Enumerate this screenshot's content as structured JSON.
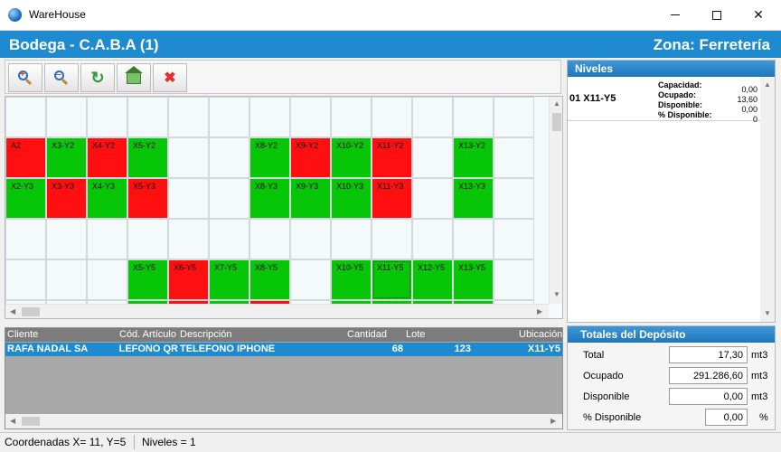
{
  "window": {
    "title": "WareHouse"
  },
  "header": {
    "bodega": "Bodega  - C.A.B.A (1)",
    "zona": "Zona: Ferretería"
  },
  "grid": {
    "rows": [
      [
        "",
        "",
        "",
        "",
        "",
        "",
        "",
        "",
        "",
        "",
        "",
        "",
        ""
      ],
      [
        "A2:r",
        "X3-Y2:g",
        "X4-Y2:r",
        "X5-Y2:g",
        "",
        "",
        "X8-Y2:g",
        "X9-Y2:r",
        "X10-Y2:g",
        "X11-Y2:r",
        "",
        "X13-Y2:g",
        ""
      ],
      [
        "X2-Y3:g",
        "X3-Y3:r",
        "X4-Y3:g",
        "X5-Y3:r",
        "",
        "",
        "X8-Y3:g",
        "X9-Y3:g",
        "X10-Y3:g",
        "X11-Y3:r",
        "",
        "X13-Y3:g",
        ""
      ],
      [
        "",
        "",
        "",
        "",
        "",
        "",
        "",
        "",
        "",
        "",
        "",
        "",
        ""
      ],
      [
        "",
        "",
        "",
        "X5-Y5:g",
        "X6-Y5:r",
        "X7-Y5:g",
        "X8-Y5:g",
        "",
        "X10-Y5:g",
        "X11-Y5:g",
        "X12-Y5:g",
        "X13-Y5:g",
        ""
      ],
      [
        "",
        "",
        "",
        ":g",
        ":r",
        ":g",
        ":r",
        "",
        ":g",
        ":g",
        ":g",
        ":g",
        ""
      ]
    ],
    "selected": "X11-Y5"
  },
  "niveles": {
    "title": "Niveles",
    "rows": [
      {
        "code": "01  X11-Y5",
        "labels": [
          "Capacidad:",
          "Ocupado:",
          "Disponible:",
          "% Disponible:"
        ],
        "values": [
          "0,00",
          "13,60",
          "0,00",
          "0"
        ]
      }
    ]
  },
  "list": {
    "columns": [
      "Cliente",
      "Cód. Artículo",
      "Descripción",
      "Cantidad",
      "Lote",
      "Ubicación"
    ],
    "rows": [
      [
        "RAFA NADAL SA",
        "TELEFONO QR",
        "TELEFONO IPHONE",
        "68",
        "123",
        "X11-Y5"
      ]
    ]
  },
  "totales": {
    "title": "Totales del Depósito",
    "total_label": "Total",
    "total_value": "17,30",
    "total_unit": "mt3",
    "ocupado_label": "Ocupado",
    "ocupado_value": "291.286,60",
    "ocupado_unit": "mt3",
    "disponible_label": "Disponible",
    "disponible_value": "0,00",
    "disponible_unit": "mt3",
    "pct_label": "% Disponible",
    "pct_value": "0,00",
    "pct_unit": "%"
  },
  "status": {
    "coords": "Coordenadas X= 11, Y=5",
    "niveles": "Niveles = 1"
  },
  "colors": {
    "accent": "#1e8ad0",
    "occupied": "#ff0f0f",
    "free": "#07c607"
  }
}
